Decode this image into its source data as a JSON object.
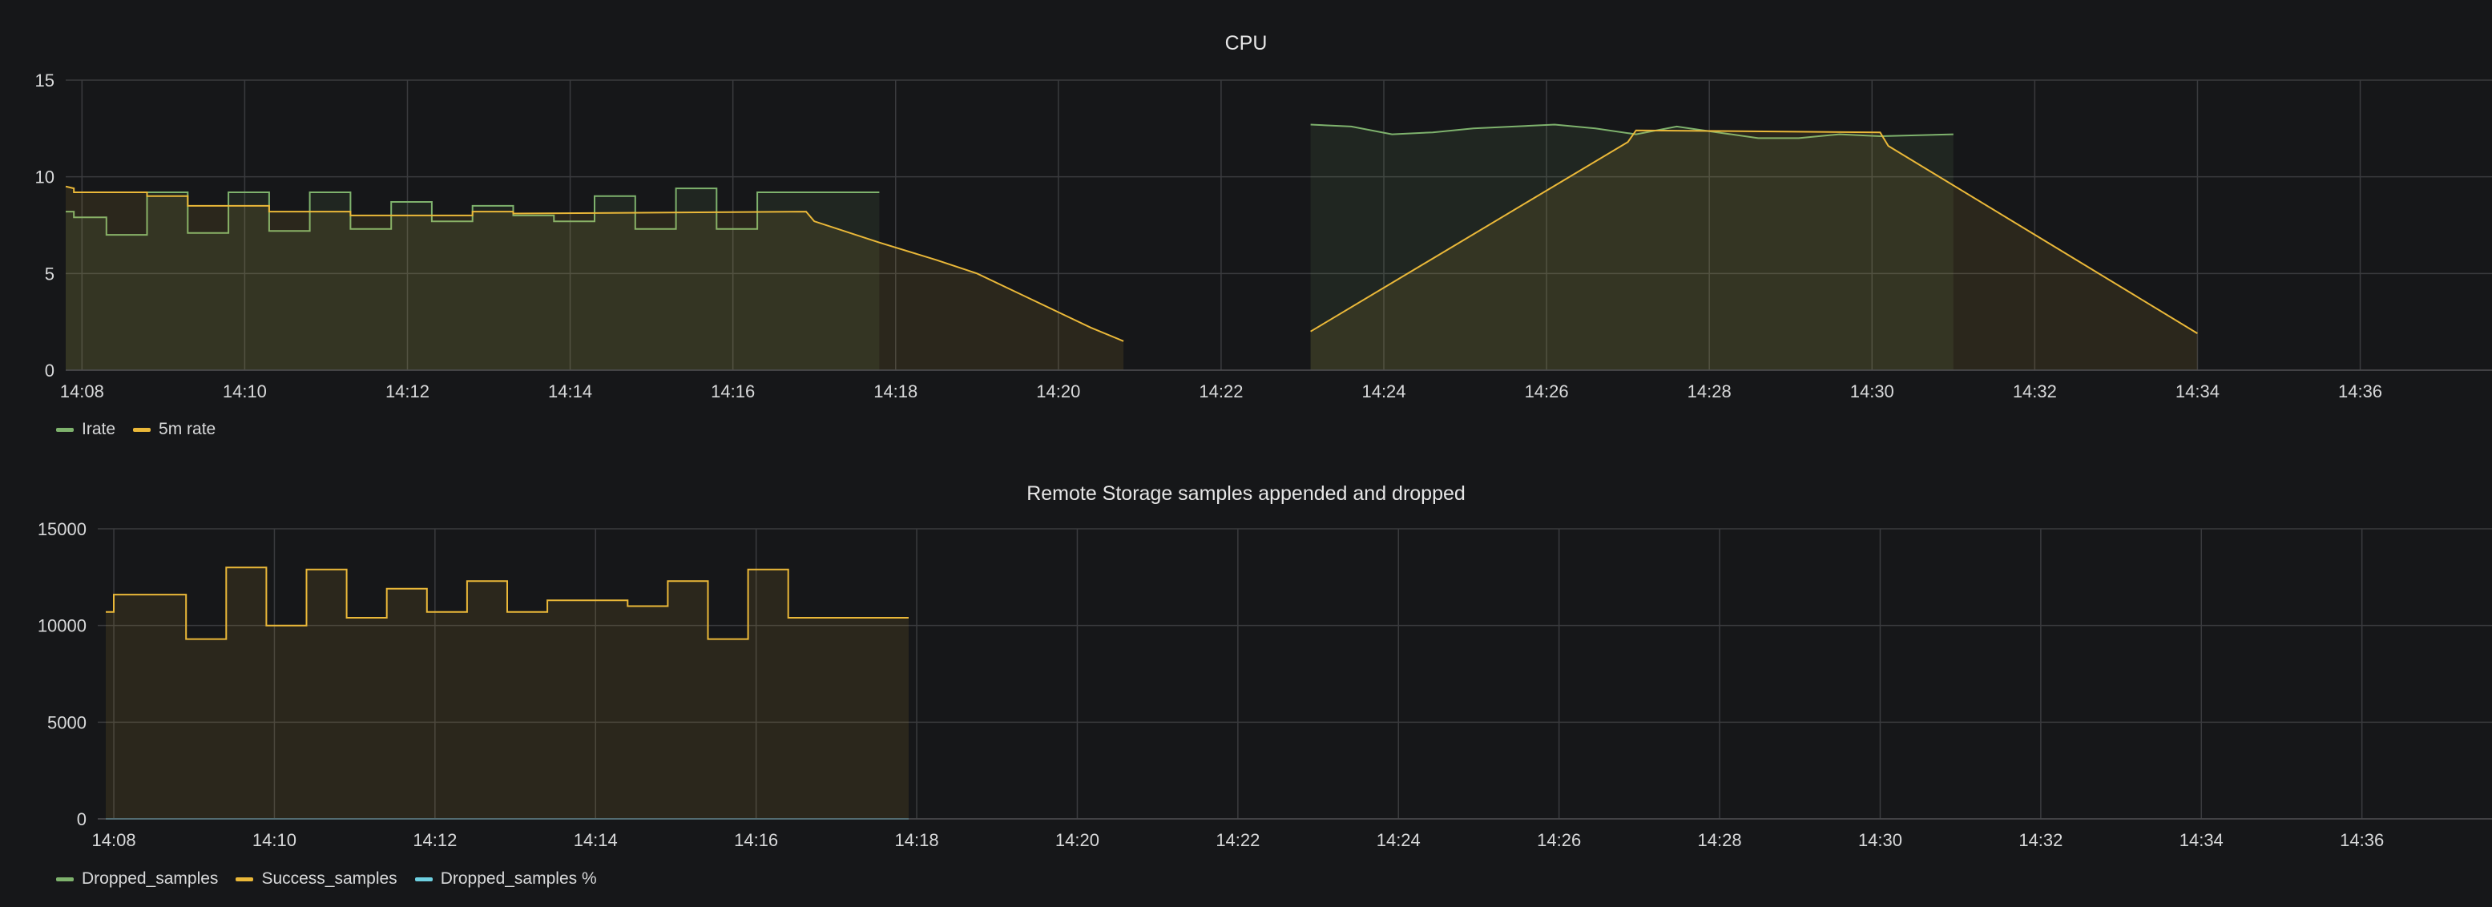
{
  "chart_data": [
    {
      "type": "area",
      "title": "CPU",
      "ylim": [
        0,
        15
      ],
      "yticks": [
        0,
        5,
        10,
        15
      ],
      "xlim": [
        "14:07:48",
        "14:37:36"
      ],
      "xticks": [
        "14:08",
        "14:10",
        "14:12",
        "14:14",
        "14:16",
        "14:18",
        "14:20",
        "14:22",
        "14:24",
        "14:26",
        "14:28",
        "14:30",
        "14:32",
        "14:34",
        "14:36"
      ],
      "grid": true,
      "legend_position": "bottom-left",
      "series": [
        {
          "name": "Irate",
          "color": "#7eb26d",
          "segments": [
            [
              [
                "14:07:48",
                8.2
              ],
              [
                "14:07:54",
                8.2
              ],
              [
                "14:07:54",
                7.9
              ],
              [
                "14:08:18",
                7.9
              ],
              [
                "14:08:18",
                7.0
              ],
              [
                "14:08:48",
                7.0
              ],
              [
                "14:08:48",
                9.2
              ],
              [
                "14:09:18",
                9.2
              ],
              [
                "14:09:18",
                7.1
              ],
              [
                "14:09:48",
                7.1
              ],
              [
                "14:09:48",
                9.2
              ],
              [
                "14:10:18",
                9.2
              ],
              [
                "14:10:18",
                7.2
              ],
              [
                "14:10:48",
                7.2
              ],
              [
                "14:10:48",
                9.2
              ],
              [
                "14:11:18",
                9.2
              ],
              [
                "14:11:18",
                7.3
              ],
              [
                "14:11:48",
                7.3
              ],
              [
                "14:11:48",
                8.7
              ],
              [
                "14:12:18",
                8.7
              ],
              [
                "14:12:18",
                7.7
              ],
              [
                "14:12:48",
                7.7
              ],
              [
                "14:12:48",
                8.5
              ],
              [
                "14:13:18",
                8.5
              ],
              [
                "14:13:18",
                8.0
              ],
              [
                "14:13:48",
                8.0
              ],
              [
                "14:13:48",
                7.7
              ],
              [
                "14:14:18",
                7.7
              ],
              [
                "14:14:18",
                9.0
              ],
              [
                "14:14:48",
                9.0
              ],
              [
                "14:14:48",
                7.3
              ],
              [
                "14:15:18",
                7.3
              ],
              [
                "14:15:18",
                9.4
              ],
              [
                "14:15:48",
                9.4
              ],
              [
                "14:15:48",
                7.3
              ],
              [
                "14:16:18",
                7.3
              ],
              [
                "14:16:18",
                9.2
              ],
              [
                "14:17:48",
                9.2
              ]
            ],
            [
              [
                "14:23:06",
                12.7
              ],
              [
                "14:23:36",
                12.6
              ],
              [
                "14:24:06",
                12.2
              ],
              [
                "14:24:36",
                12.3
              ],
              [
                "14:25:06",
                12.5
              ],
              [
                "14:25:36",
                12.6
              ],
              [
                "14:26:06",
                12.7
              ],
              [
                "14:26:36",
                12.5
              ],
              [
                "14:27:06",
                12.2
              ],
              [
                "14:27:36",
                12.6
              ],
              [
                "14:28:06",
                12.3
              ],
              [
                "14:28:36",
                12.0
              ],
              [
                "14:29:06",
                12.0
              ],
              [
                "14:29:36",
                12.2
              ],
              [
                "14:30:06",
                12.1
              ],
              [
                "14:31:00",
                12.2
              ]
            ]
          ]
        },
        {
          "name": "5m rate",
          "color": "#eab839",
          "segments": [
            [
              [
                "14:07:48",
                9.5
              ],
              [
                "14:07:54",
                9.4
              ],
              [
                "14:07:54",
                9.2
              ],
              [
                "14:08:48",
                9.2
              ],
              [
                "14:08:48",
                9.0
              ],
              [
                "14:09:18",
                9.0
              ],
              [
                "14:09:18",
                8.5
              ],
              [
                "14:10:18",
                8.5
              ],
              [
                "14:10:18",
                8.2
              ],
              [
                "14:11:18",
                8.2
              ],
              [
                "14:11:18",
                8.0
              ],
              [
                "14:12:48",
                8.0
              ],
              [
                "14:12:48",
                8.2
              ],
              [
                "14:13:18",
                8.2
              ],
              [
                "14:13:18",
                8.1
              ],
              [
                "14:16:54",
                8.2
              ],
              [
                "14:17:00",
                7.7
              ],
              [
                "14:17:48",
                6.6
              ],
              [
                "14:18:30",
                5.7
              ],
              [
                "14:19:00",
                5.0
              ],
              [
                "14:19:30",
                4.0
              ],
              [
                "14:20:00",
                3.0
              ],
              [
                "14:20:24",
                2.2
              ],
              [
                "14:20:48",
                1.5
              ]
            ],
            [
              [
                "14:23:06",
                2.0
              ],
              [
                "14:27:00",
                11.8
              ],
              [
                "14:27:06",
                12.4
              ],
              [
                "14:30:06",
                12.3
              ],
              [
                "14:30:12",
                11.6
              ],
              [
                "14:34:00",
                1.9
              ]
            ]
          ]
        }
      ]
    },
    {
      "type": "area",
      "title": "Remote Storage samples appended and dropped",
      "ylim": [
        0,
        15000
      ],
      "yticks": [
        0,
        5000,
        10000,
        15000
      ],
      "xlim": [
        "14:07:48",
        "14:37:36"
      ],
      "xticks": [
        "14:08",
        "14:10",
        "14:12",
        "14:14",
        "14:16",
        "14:18",
        "14:20",
        "14:22",
        "14:24",
        "14:26",
        "14:28",
        "14:30",
        "14:32",
        "14:34",
        "14:36"
      ],
      "grid": true,
      "legend_position": "bottom-left",
      "series": [
        {
          "name": "Dropped_samples",
          "color": "#7eb26d",
          "segments": [
            [
              [
                "14:07:54",
                0
              ],
              [
                "14:17:54",
                0
              ]
            ]
          ]
        },
        {
          "name": "Success_samples",
          "color": "#eab839",
          "segments": [
            [
              [
                "14:07:54",
                10700
              ],
              [
                "14:08:00",
                10700
              ],
              [
                "14:08:00",
                11600
              ],
              [
                "14:08:54",
                11600
              ],
              [
                "14:08:54",
                9300
              ],
              [
                "14:09:24",
                9300
              ],
              [
                "14:09:24",
                13000
              ],
              [
                "14:09:54",
                13000
              ],
              [
                "14:09:54",
                10000
              ],
              [
                "14:10:24",
                10000
              ],
              [
                "14:10:24",
                12900
              ],
              [
                "14:10:54",
                12900
              ],
              [
                "14:10:54",
                10400
              ],
              [
                "14:11:24",
                10400
              ],
              [
                "14:11:24",
                11900
              ],
              [
                "14:11:54",
                11900
              ],
              [
                "14:11:54",
                10700
              ],
              [
                "14:12:24",
                10700
              ],
              [
                "14:12:24",
                12300
              ],
              [
                "14:12:54",
                12300
              ],
              [
                "14:12:54",
                10700
              ],
              [
                "14:13:24",
                10700
              ],
              [
                "14:13:24",
                11300
              ],
              [
                "14:14:24",
                11300
              ],
              [
                "14:14:24",
                11000
              ],
              [
                "14:14:54",
                11000
              ],
              [
                "14:14:54",
                12300
              ],
              [
                "14:15:24",
                12300
              ],
              [
                "14:15:24",
                9300
              ],
              [
                "14:15:54",
                9300
              ],
              [
                "14:15:54",
                12900
              ],
              [
                "14:16:24",
                12900
              ],
              [
                "14:16:24",
                10400
              ],
              [
                "14:17:54",
                10400
              ]
            ]
          ]
        },
        {
          "name": "Dropped_samples %",
          "color": "#6ed0e0",
          "segments": [
            [
              [
                "14:07:54",
                0
              ],
              [
                "14:17:54",
                0
              ]
            ]
          ]
        }
      ]
    }
  ]
}
